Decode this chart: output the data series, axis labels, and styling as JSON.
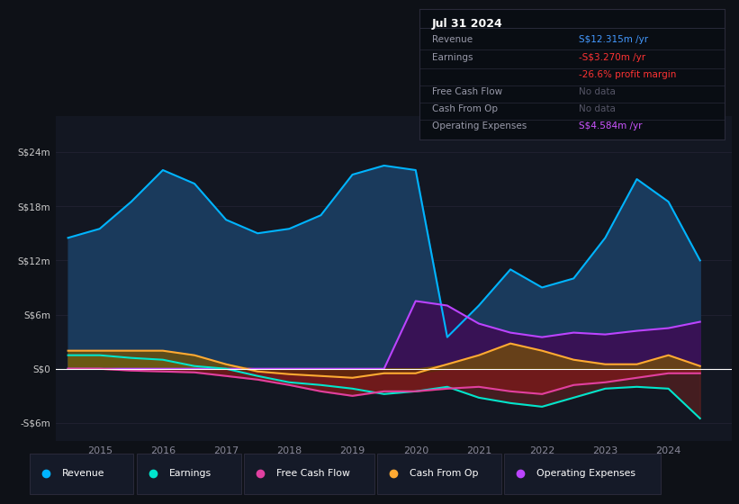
{
  "background_color": "#0e1117",
  "chart_bg": "#131722",
  "ylim": [
    -8,
    28
  ],
  "ytick_vals": [
    -6,
    0,
    6,
    12,
    18,
    24
  ],
  "ytick_labels": [
    "-S$6m",
    "S$0",
    "S$6m",
    "S$12m",
    "S$18m",
    "S$24m"
  ],
  "xlim": [
    2014.3,
    2025.0
  ],
  "xtick_positions": [
    2015,
    2016,
    2017,
    2018,
    2019,
    2020,
    2021,
    2022,
    2023,
    2024
  ],
  "xlabel_color": "#888899",
  "ylabel_color": "#cccccc",
  "grid_color": "#252535",
  "zero_line_color": "#ffffff",
  "series": {
    "Revenue": {
      "color": "#00b4ff",
      "fill_color": "#1a3a5c",
      "lw": 1.5
    },
    "Earnings": {
      "color": "#00e5cc",
      "fill_color": "#2a5a44",
      "lw": 1.5
    },
    "FreeCashFlow": {
      "color": "#e040a0",
      "fill_color": "#6a1a3a",
      "lw": 1.5
    },
    "CashFromOp": {
      "color": "#ffaa33",
      "fill_color": "#6a4400",
      "lw": 1.5
    },
    "OperatingExpenses": {
      "color": "#bb44ff",
      "fill_color": "#3a1055",
      "lw": 1.5
    }
  },
  "legend_items": [
    "Revenue",
    "Earnings",
    "Free Cash Flow",
    "Cash From Op",
    "Operating Expenses"
  ],
  "legend_colors": [
    "#00b4ff",
    "#00e5cc",
    "#e040a0",
    "#ffaa33",
    "#bb44ff"
  ],
  "legend_bg": "#151a28",
  "legend_border": "#2a2a3a",
  "info_bg": "#090d13",
  "info_border": "#2a2a3a",
  "x": [
    2014.5,
    2015.0,
    2015.5,
    2016.0,
    2016.5,
    2017.0,
    2017.5,
    2018.0,
    2018.5,
    2019.0,
    2019.5,
    2020.0,
    2020.5,
    2021.0,
    2021.5,
    2022.0,
    2022.5,
    2023.0,
    2023.5,
    2024.0,
    2024.5
  ],
  "revenue": [
    14.5,
    15.5,
    18.5,
    22.0,
    20.5,
    16.5,
    15.0,
    15.5,
    17.0,
    21.5,
    22.5,
    22.0,
    3.5,
    7.0,
    11.0,
    9.0,
    10.0,
    14.5,
    21.0,
    18.5,
    12.0
  ],
  "earnings": [
    1.5,
    1.5,
    1.2,
    1.0,
    0.3,
    0.0,
    -0.8,
    -1.5,
    -1.8,
    -2.2,
    -2.8,
    -2.5,
    -2.0,
    -3.2,
    -3.8,
    -4.2,
    -3.2,
    -2.2,
    -2.0,
    -2.2,
    -5.5
  ],
  "fcf": [
    0.0,
    0.0,
    -0.2,
    -0.3,
    -0.4,
    -0.8,
    -1.2,
    -1.8,
    -2.5,
    -3.0,
    -2.5,
    -2.5,
    -2.2,
    -2.0,
    -2.5,
    -2.8,
    -1.8,
    -1.5,
    -1.0,
    -0.5,
    -0.5
  ],
  "cfo": [
    2.0,
    2.0,
    2.0,
    2.0,
    1.5,
    0.5,
    -0.3,
    -0.6,
    -0.8,
    -1.0,
    -0.5,
    -0.5,
    0.5,
    1.5,
    2.8,
    2.0,
    1.0,
    0.5,
    0.5,
    1.5,
    0.3
  ],
  "opex": [
    0.0,
    0.0,
    0.0,
    0.0,
    0.0,
    0.0,
    0.0,
    0.0,
    0.0,
    0.0,
    0.0,
    7.5,
    7.0,
    5.0,
    4.0,
    3.5,
    4.0,
    3.8,
    4.2,
    4.5,
    5.2
  ]
}
